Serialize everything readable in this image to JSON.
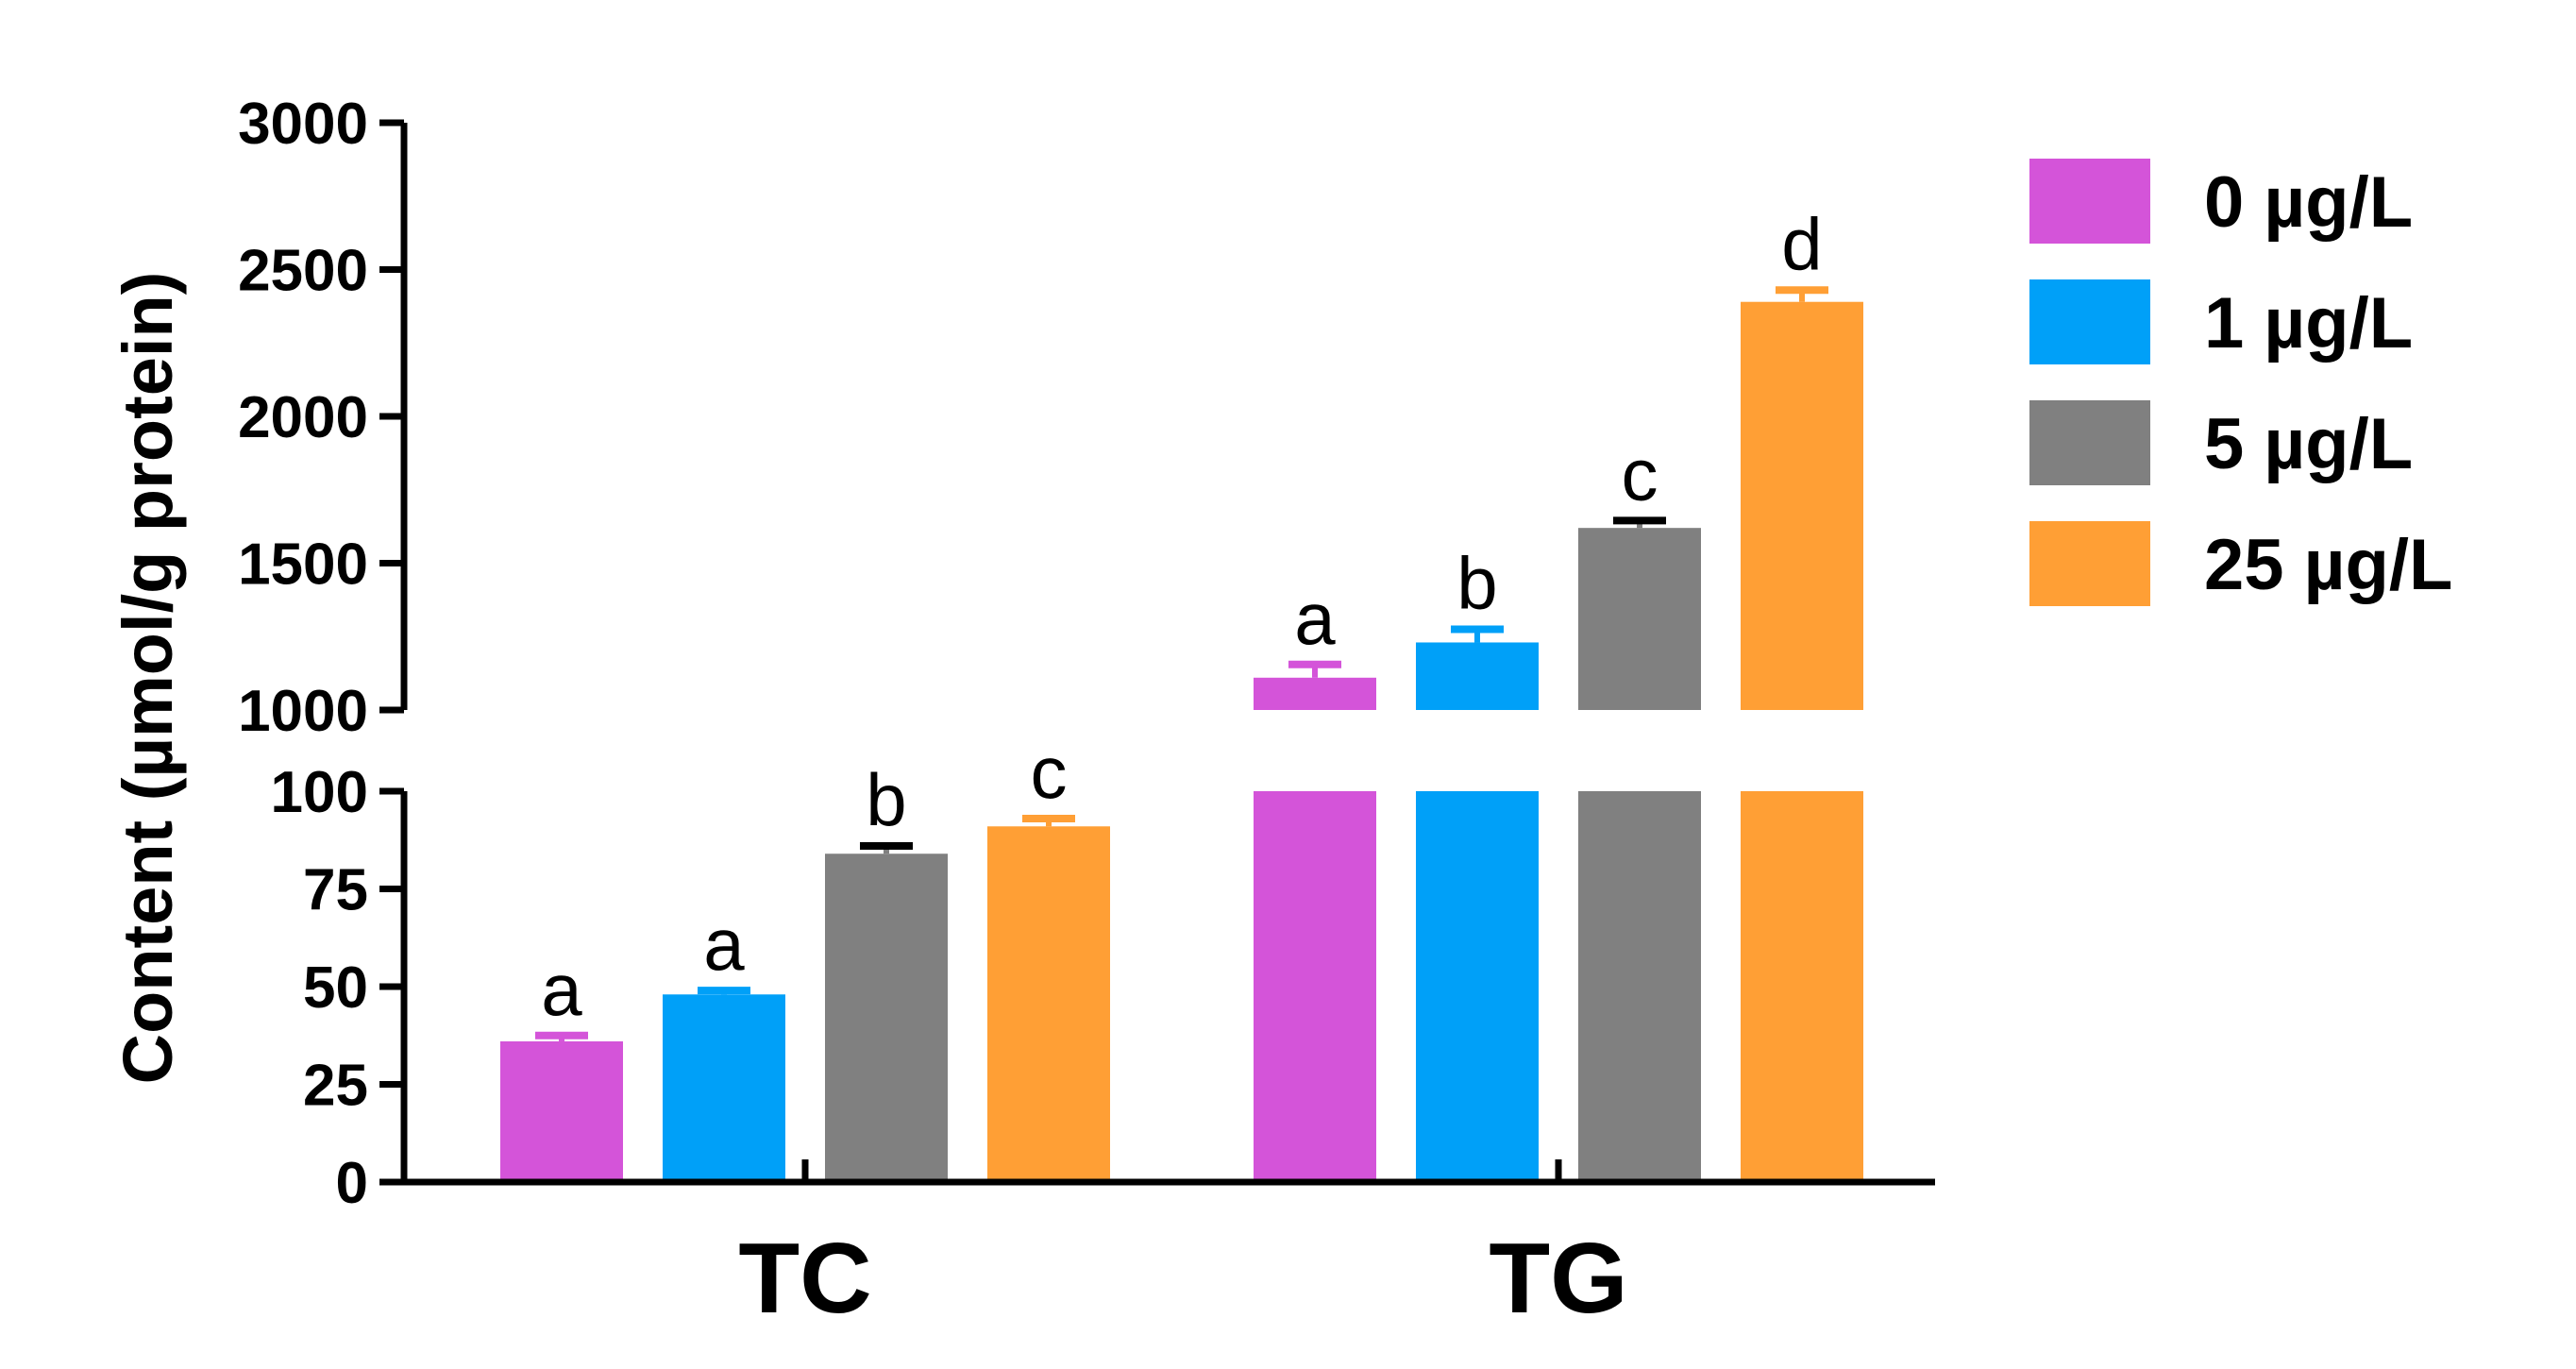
{
  "chart_data": {
    "type": "bar",
    "ylabel": "Content (µmol/g protein)",
    "xlabel": "",
    "categories": [
      "TC",
      "TG"
    ],
    "y_axis_break": {
      "lower_range": [
        0,
        100
      ],
      "upper_range": [
        1000,
        3000
      ],
      "lower_ticks": [
        "0",
        "25",
        "50",
        "75",
        "100"
      ],
      "upper_ticks": [
        "1000",
        "1500",
        "2000",
        "2500",
        "3000"
      ]
    },
    "series": [
      {
        "name": "0 µg/L",
        "color": "#d454d9",
        "values": [
          36,
          1110
        ],
        "errors": [
          1.5,
          45
        ],
        "letters": [
          "a",
          "a"
        ]
      },
      {
        "name": "1 µg/L",
        "color": "#00a0f8",
        "values": [
          48,
          1230
        ],
        "errors": [
          1,
          45
        ],
        "letters": [
          "a",
          "b"
        ]
      },
      {
        "name": "5 µg/L",
        "color": "#808080",
        "values": [
          84,
          1620
        ],
        "errors": [
          2,
          25
        ],
        "letters": [
          "b",
          "c"
        ]
      },
      {
        "name": "25 µg/L",
        "color": "#ff9f35",
        "values": [
          91,
          2390
        ],
        "errors": [
          2,
          40
        ],
        "letters": [
          "c",
          "d"
        ]
      }
    ],
    "legend_position": "top-right",
    "grid": false
  }
}
